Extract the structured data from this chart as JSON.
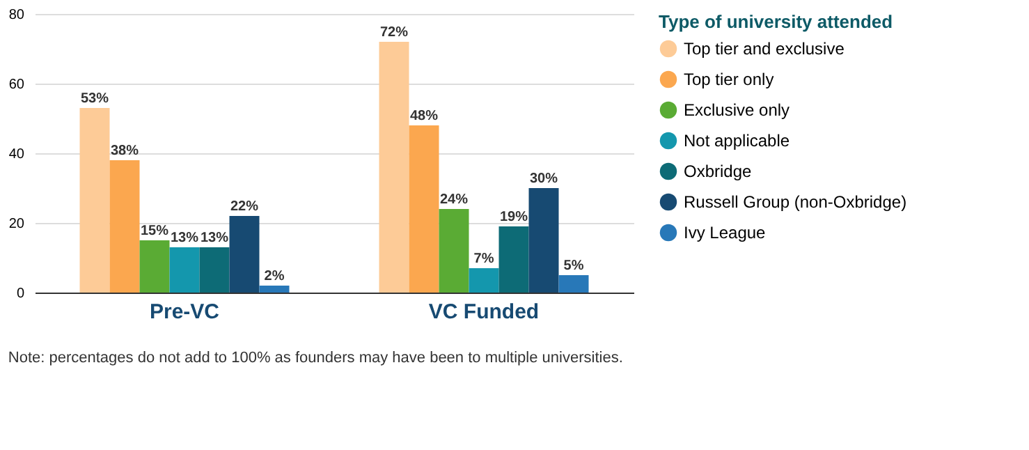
{
  "chart_data": {
    "type": "bar",
    "categories": [
      "Pre-VC",
      "VC Funded"
    ],
    "legend_title": "Type of university attended",
    "legend": "right",
    "series": [
      {
        "name": "Top tier and exclusive",
        "color": "#fdcb97",
        "values": [
          53,
          72
        ],
        "value_labels": [
          "53%",
          "72%"
        ]
      },
      {
        "name": "Top tier only",
        "color": "#fba74f",
        "values": [
          38,
          48
        ],
        "value_labels": [
          "38%",
          "48%"
        ]
      },
      {
        "name": "Exclusive only",
        "color": "#5aab34",
        "values": [
          15,
          24
        ],
        "value_labels": [
          "15%",
          "24%"
        ]
      },
      {
        "name": "Not applicable",
        "color": "#1497ad",
        "values": [
          13,
          7
        ],
        "value_labels": [
          "13%",
          "7%"
        ]
      },
      {
        "name": "Oxbridge",
        "color": "#0d6b76",
        "values": [
          13,
          19
        ],
        "value_labels": [
          "13%",
          "19%"
        ]
      },
      {
        "name": "Russell Group (non-Oxbridge)",
        "color": "#174a72",
        "values": [
          22,
          30
        ],
        "value_labels": [
          "22%",
          "30%"
        ]
      },
      {
        "name": "Ivy League",
        "color": "#2878b8",
        "values": [
          2,
          5
        ],
        "value_labels": [
          "2%",
          "5%"
        ]
      }
    ],
    "ylim": [
      0,
      80
    ],
    "yticks": [
      0,
      20,
      40,
      60,
      80
    ],
    "grid": "y",
    "annotations": [
      "Note: percentages do not add to 100% as founders may have been to multiple universities."
    ]
  }
}
